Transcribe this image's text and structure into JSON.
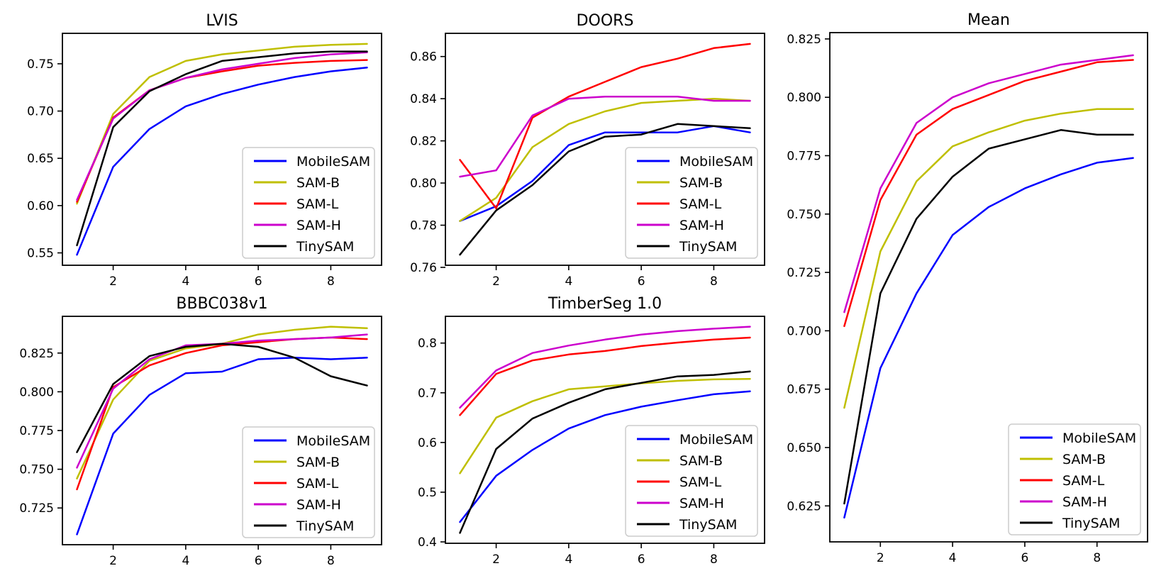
{
  "figure": {
    "background": "#ffffff"
  },
  "palette": {
    "MobileSAM": "#0000ff",
    "SAM-B": "#bfbf00",
    "SAM-L": "#ff0000",
    "SAM-H": "#cc00cc",
    "TinySAM": "#000000"
  },
  "legend": {
    "position": "lower right",
    "labels": [
      "MobileSAM",
      "SAM-B",
      "SAM-L",
      "SAM-H",
      "TinySAM"
    ],
    "border_color": "#cccccc",
    "background": "#ffffff"
  },
  "chart_data": [
    {
      "id": "lvis",
      "type": "line",
      "title": "LVIS",
      "x": [
        1,
        2,
        3,
        4,
        5,
        6,
        7,
        8,
        9
      ],
      "xlim": [
        0.6,
        9.4
      ],
      "xticks": [
        2,
        4,
        6,
        8
      ],
      "xtick_labels": [
        "2",
        "4",
        "6",
        "8"
      ],
      "ylim": [
        0.5369,
        0.7822
      ],
      "yticks": [
        0.55,
        0.6,
        0.65,
        0.7,
        0.75
      ],
      "ytick_labels": [
        "0.55",
        "0.60",
        "0.65",
        "0.70",
        "0.75"
      ],
      "grid": false,
      "legend_position": "lower right",
      "series": [
        {
          "name": "MobileSAM",
          "values": [
            0.548,
            0.641,
            0.681,
            0.705,
            0.718,
            0.728,
            0.736,
            0.742,
            0.746
          ]
        },
        {
          "name": "SAM-B",
          "values": [
            0.602,
            0.697,
            0.736,
            0.753,
            0.76,
            0.764,
            0.768,
            0.77,
            0.771
          ]
        },
        {
          "name": "SAM-L",
          "values": [
            0.604,
            0.693,
            0.722,
            0.735,
            0.742,
            0.748,
            0.751,
            0.753,
            0.754
          ]
        },
        {
          "name": "SAM-H",
          "values": [
            0.606,
            0.692,
            0.722,
            0.735,
            0.744,
            0.75,
            0.756,
            0.76,
            0.762
          ]
        },
        {
          "name": "TinySAM",
          "values": [
            0.558,
            0.683,
            0.721,
            0.739,
            0.753,
            0.757,
            0.761,
            0.763,
            0.763
          ]
        }
      ]
    },
    {
      "id": "doors",
      "type": "line",
      "title": "DOORS",
      "x": [
        1,
        2,
        3,
        4,
        5,
        6,
        7,
        8,
        9
      ],
      "xlim": [
        0.6,
        9.4
      ],
      "xticks": [
        2,
        4,
        6,
        8
      ],
      "xtick_labels": [
        "2",
        "4",
        "6",
        "8"
      ],
      "ylim": [
        0.761,
        0.871
      ],
      "yticks": [
        0.76,
        0.78,
        0.8,
        0.82,
        0.84,
        0.86
      ],
      "ytick_labels": [
        "0.76",
        "0.78",
        "0.80",
        "0.82",
        "0.84",
        "0.86"
      ],
      "grid": false,
      "legend_position": "lower right",
      "series": [
        {
          "name": "MobileSAM",
          "values": [
            0.782,
            0.789,
            0.801,
            0.818,
            0.824,
            0.824,
            0.824,
            0.827,
            0.824
          ]
        },
        {
          "name": "SAM-B",
          "values": [
            0.782,
            0.793,
            0.817,
            0.828,
            0.834,
            0.838,
            0.839,
            0.84,
            0.839
          ]
        },
        {
          "name": "SAM-L",
          "values": [
            0.811,
            0.788,
            0.831,
            0.841,
            0.848,
            0.855,
            0.859,
            0.864,
            0.866
          ]
        },
        {
          "name": "SAM-H",
          "values": [
            0.803,
            0.806,
            0.832,
            0.84,
            0.841,
            0.841,
            0.841,
            0.839,
            0.839
          ]
        },
        {
          "name": "TinySAM",
          "values": [
            0.766,
            0.787,
            0.799,
            0.815,
            0.822,
            0.823,
            0.828,
            0.827,
            0.826
          ]
        }
      ]
    },
    {
      "id": "bbbc",
      "type": "line",
      "title": "BBBC038v1",
      "x": [
        1,
        2,
        3,
        4,
        5,
        6,
        7,
        8,
        9
      ],
      "xlim": [
        0.6,
        9.4
      ],
      "xticks": [
        2,
        4,
        6,
        8
      ],
      "xtick_labels": [
        "2",
        "4",
        "6",
        "8"
      ],
      "ylim": [
        0.7013,
        0.8487
      ],
      "yticks": [
        0.725,
        0.75,
        0.775,
        0.8,
        0.825
      ],
      "ytick_labels": [
        "0.725",
        "0.750",
        "0.775",
        "0.800",
        "0.825"
      ],
      "grid": false,
      "legend_position": "lower right",
      "series": [
        {
          "name": "MobileSAM",
          "values": [
            0.708,
            0.773,
            0.798,
            0.812,
            0.813,
            0.821,
            0.822,
            0.821,
            0.822
          ]
        },
        {
          "name": "SAM-B",
          "values": [
            0.744,
            0.795,
            0.82,
            0.828,
            0.831,
            0.837,
            0.84,
            0.842,
            0.841
          ]
        },
        {
          "name": "SAM-L",
          "values": [
            0.737,
            0.803,
            0.817,
            0.825,
            0.83,
            0.832,
            0.834,
            0.835,
            0.834
          ]
        },
        {
          "name": "SAM-H",
          "values": [
            0.751,
            0.802,
            0.821,
            0.83,
            0.831,
            0.833,
            0.834,
            0.835,
            0.837
          ]
        },
        {
          "name": "TinySAM",
          "values": [
            0.761,
            0.805,
            0.823,
            0.829,
            0.831,
            0.829,
            0.822,
            0.81,
            0.804
          ]
        }
      ]
    },
    {
      "id": "timber",
      "type": "line",
      "title": "TimberSeg 1.0",
      "x": [
        1,
        2,
        3,
        4,
        5,
        6,
        7,
        8,
        9
      ],
      "xlim": [
        0.6,
        9.4
      ],
      "xticks": [
        2,
        4,
        6,
        8
      ],
      "xtick_labels": [
        "2",
        "4",
        "6",
        "8"
      ],
      "ylim": [
        0.3972,
        0.8538
      ],
      "yticks": [
        0.4,
        0.5,
        0.6,
        0.7,
        0.8
      ],
      "ytick_labels": [
        "0.4",
        "0.5",
        "0.6",
        "0.7",
        "0.8"
      ],
      "grid": false,
      "legend_position": "lower right",
      "series": [
        {
          "name": "MobileSAM",
          "values": [
            0.44,
            0.533,
            0.585,
            0.628,
            0.655,
            0.672,
            0.685,
            0.697,
            0.703
          ]
        },
        {
          "name": "SAM-B",
          "values": [
            0.538,
            0.65,
            0.683,
            0.707,
            0.713,
            0.719,
            0.724,
            0.727,
            0.728
          ]
        },
        {
          "name": "SAM-L",
          "values": [
            0.655,
            0.738,
            0.765,
            0.777,
            0.784,
            0.794,
            0.801,
            0.807,
            0.811
          ]
        },
        {
          "name": "SAM-H",
          "values": [
            0.67,
            0.745,
            0.78,
            0.795,
            0.807,
            0.817,
            0.824,
            0.829,
            0.833
          ]
        },
        {
          "name": "TinySAM",
          "values": [
            0.418,
            0.587,
            0.648,
            0.68,
            0.707,
            0.72,
            0.733,
            0.736,
            0.743
          ]
        }
      ]
    },
    {
      "id": "mean",
      "type": "line",
      "title": "Mean",
      "x": [
        1,
        2,
        3,
        4,
        5,
        6,
        7,
        8,
        9
      ],
      "xlim": [
        0.6,
        9.4
      ],
      "xticks": [
        2,
        4,
        6,
        8
      ],
      "xtick_labels": [
        "2",
        "4",
        "6",
        "8"
      ],
      "ylim": [
        0.6096,
        0.8277
      ],
      "yticks": [
        0.625,
        0.65,
        0.675,
        0.7,
        0.725,
        0.75,
        0.775,
        0.8,
        0.825
      ],
      "ytick_labels": [
        "0.625",
        "0.650",
        "0.675",
        "0.700",
        "0.725",
        "0.750",
        "0.775",
        "0.800",
        "0.825"
      ],
      "grid": false,
      "legend_position": "lower right",
      "series": [
        {
          "name": "MobileSAM",
          "values": [
            0.62,
            0.684,
            0.716,
            0.741,
            0.753,
            0.761,
            0.767,
            0.772,
            0.774
          ]
        },
        {
          "name": "SAM-B",
          "values": [
            0.667,
            0.734,
            0.764,
            0.779,
            0.785,
            0.79,
            0.793,
            0.795,
            0.795
          ]
        },
        {
          "name": "SAM-L",
          "values": [
            0.702,
            0.756,
            0.784,
            0.795,
            0.801,
            0.807,
            0.811,
            0.815,
            0.816
          ]
        },
        {
          "name": "SAM-H",
          "values": [
            0.708,
            0.761,
            0.789,
            0.8,
            0.806,
            0.81,
            0.814,
            0.816,
            0.818
          ]
        },
        {
          "name": "TinySAM",
          "values": [
            0.626,
            0.716,
            0.748,
            0.766,
            0.778,
            0.782,
            0.786,
            0.784,
            0.784
          ]
        }
      ]
    }
  ]
}
